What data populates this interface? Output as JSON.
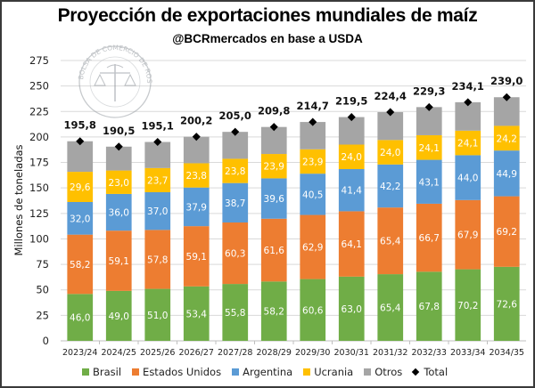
{
  "chart_data": {
    "type": "bar",
    "stacked": true,
    "title": "Proyección de exportaciones mundiales de maíz",
    "subtitle": "@BCRmercados en base a USDA",
    "xlabel": "",
    "ylabel": "Millones de toneladas",
    "ylim": [
      0,
      275
    ],
    "yticks": [
      0,
      25,
      50,
      75,
      100,
      125,
      150,
      175,
      200,
      225,
      250,
      275
    ],
    "grid": true,
    "legend_position": "bottom",
    "categories": [
      "2023/24",
      "2024/25",
      "2025/26",
      "2026/27",
      "2027/28",
      "2028/29",
      "2029/30",
      "2030/31",
      "2031/32",
      "2032/33",
      "2033/34",
      "2034/35"
    ],
    "series": [
      {
        "name": "Brasil",
        "color": "#70ad47",
        "values": [
          46.0,
          49.0,
          51.0,
          53.4,
          55.8,
          58.2,
          60.6,
          63.0,
          65.4,
          67.8,
          70.2,
          72.6
        ],
        "labels": [
          "46,0",
          "49,0",
          "51,0",
          "53,4",
          "55,8",
          "58,2",
          "60,6",
          "63,0",
          "65,4",
          "67,8",
          "70,2",
          "72,6"
        ]
      },
      {
        "name": "Estados Unidos",
        "color": "#ed7d31",
        "values": [
          58.2,
          59.1,
          57.8,
          59.1,
          60.3,
          61.6,
          62.9,
          64.1,
          65.4,
          66.7,
          67.9,
          69.2
        ],
        "labels": [
          "58,2",
          "59,1",
          "57,8",
          "59,1",
          "60,3",
          "61,6",
          "62,9",
          "64,1",
          "65,4",
          "66,7",
          "67,9",
          "69,2"
        ]
      },
      {
        "name": "Argentina",
        "color": "#5b9bd5",
        "values": [
          32.0,
          36.0,
          37.0,
          37.9,
          38.7,
          39.6,
          40.5,
          41.4,
          42.2,
          43.1,
          44.0,
          44.9
        ],
        "labels": [
          "32,0",
          "36,0",
          "37,0",
          "37,9",
          "38,7",
          "39,6",
          "40,5",
          "41,4",
          "42,2",
          "43,1",
          "44,0",
          "44,9"
        ]
      },
      {
        "name": "Ucrania",
        "color": "#ffc000",
        "values": [
          29.6,
          23.0,
          23.7,
          23.8,
          23.8,
          23.9,
          23.9,
          24.0,
          24.0,
          24.1,
          24.1,
          24.2
        ],
        "labels": [
          "29,6",
          "23,0",
          "23,7",
          "23,8",
          "23,8",
          "23,9",
          "23,9",
          "24,0",
          "24,0",
          "24,1",
          "24,1",
          "24,2"
        ]
      },
      {
        "name": "Otros",
        "color": "#a5a5a5",
        "values": [
          30.0,
          23.4,
          25.6,
          26.0,
          26.4,
          26.5,
          26.8,
          27.0,
          27.4,
          27.6,
          27.9,
          28.1
        ],
        "labels": null
      }
    ],
    "total": {
      "name": "Total",
      "color": "#000000",
      "values": [
        195.8,
        190.5,
        195.1,
        200.2,
        205.0,
        209.8,
        214.7,
        219.5,
        224.4,
        229.3,
        234.1,
        239.0
      ],
      "labels": [
        "195,8",
        "190,5",
        "195,1",
        "200,2",
        "205,0",
        "209,8",
        "214,7",
        "219,5",
        "224,4",
        "229,3",
        "234,1",
        "239,0"
      ]
    }
  },
  "watermark": "BOLSA DE COMERCIO DE ROSARIO"
}
